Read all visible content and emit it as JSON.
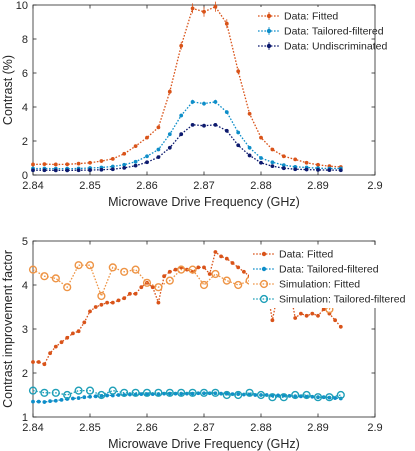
{
  "chart_data": [
    {
      "type": "line",
      "title": "",
      "xlabel": "Microwave Drive Frequency (GHz)",
      "ylabel": "Contrast (%)",
      "xlim": [
        2.84,
        2.9
      ],
      "ylim": [
        0,
        10
      ],
      "xticks": [
        "2.84",
        "2.85",
        "2.86",
        "2.87",
        "2.88",
        "2.89",
        "2.9"
      ],
      "yticks": [
        "0",
        "2",
        "4",
        "6",
        "8",
        "10"
      ],
      "legend_position": "top-right",
      "series": [
        {
          "name": "Data: Fitted",
          "color": "#d95319",
          "marker": "dot",
          "errorbar": true,
          "x": [
            2.84,
            2.842,
            2.844,
            2.846,
            2.848,
            2.85,
            2.852,
            2.854,
            2.856,
            2.858,
            2.86,
            2.862,
            2.864,
            2.866,
            2.868,
            2.87,
            2.872,
            2.874,
            2.876,
            2.878,
            2.88,
            2.882,
            2.884,
            2.886,
            2.888,
            2.89,
            2.892,
            2.894
          ],
          "y": [
            0.62,
            0.64,
            0.62,
            0.63,
            0.67,
            0.72,
            0.82,
            0.95,
            1.25,
            1.7,
            2.2,
            2.8,
            4.9,
            7.6,
            9.8,
            9.6,
            9.9,
            8.9,
            6.1,
            3.6,
            2.2,
            1.5,
            1.1,
            0.92,
            0.72,
            0.6,
            0.52,
            0.47
          ]
        },
        {
          "name": "Data: Tailored-filtered",
          "color": "#0e8ec9",
          "marker": "dot",
          "errorbar": true,
          "x": [
            2.84,
            2.842,
            2.844,
            2.846,
            2.848,
            2.85,
            2.852,
            2.854,
            2.856,
            2.858,
            2.86,
            2.862,
            2.864,
            2.866,
            2.868,
            2.87,
            2.872,
            2.874,
            2.876,
            2.878,
            2.88,
            2.882,
            2.884,
            2.886,
            2.888,
            2.89,
            2.892,
            2.894
          ],
          "y": [
            0.38,
            0.38,
            0.37,
            0.37,
            0.38,
            0.41,
            0.44,
            0.5,
            0.6,
            0.78,
            1.1,
            1.5,
            2.4,
            3.5,
            4.3,
            4.2,
            4.3,
            3.7,
            2.5,
            1.6,
            1.0,
            0.75,
            0.58,
            0.48,
            0.44,
            0.4,
            0.38,
            0.38
          ]
        },
        {
          "name": "Data: Undiscriminated",
          "color": "#0d1a6e",
          "marker": "dot",
          "errorbar": true,
          "x": [
            2.84,
            2.842,
            2.844,
            2.846,
            2.848,
            2.85,
            2.852,
            2.854,
            2.856,
            2.858,
            2.86,
            2.862,
            2.864,
            2.866,
            2.868,
            2.87,
            2.872,
            2.874,
            2.876,
            2.878,
            2.88,
            2.882,
            2.884,
            2.886,
            2.888,
            2.89,
            2.892,
            2.894
          ],
          "y": [
            0.28,
            0.28,
            0.27,
            0.27,
            0.28,
            0.29,
            0.31,
            0.34,
            0.42,
            0.55,
            0.75,
            1.05,
            1.6,
            2.4,
            2.95,
            2.9,
            2.95,
            2.6,
            1.75,
            1.15,
            0.72,
            0.52,
            0.4,
            0.34,
            0.32,
            0.3,
            0.29,
            0.28
          ]
        }
      ]
    },
    {
      "type": "line",
      "title": "",
      "xlabel": "Microwave Drive Frequency (GHz)",
      "ylabel": "Contrast improvement factor",
      "xlim": [
        2.84,
        2.9
      ],
      "ylim": [
        1,
        5
      ],
      "xticks": [
        "2.84",
        "2.85",
        "2.86",
        "2.87",
        "2.88",
        "2.89",
        "2.9"
      ],
      "yticks": [
        "1",
        "2",
        "3",
        "4",
        "5"
      ],
      "legend_position": "top-right",
      "series": [
        {
          "name": "Data: Fitted",
          "color": "#d95319",
          "marker": "dot",
          "x": [
            2.84,
            2.841,
            2.842,
            2.843,
            2.844,
            2.845,
            2.846,
            2.847,
            2.848,
            2.849,
            2.85,
            2.851,
            2.852,
            2.853,
            2.854,
            2.855,
            2.856,
            2.857,
            2.858,
            2.859,
            2.86,
            2.861,
            2.862,
            2.863,
            2.864,
            2.865,
            2.866,
            2.867,
            2.868,
            2.869,
            2.87,
            2.871,
            2.872,
            2.873,
            2.874,
            2.875,
            2.876,
            2.877,
            2.878,
            2.879,
            2.88,
            2.881,
            2.882,
            2.883,
            2.884,
            2.885,
            2.886,
            2.887,
            2.888,
            2.889,
            2.89,
            2.891,
            2.892,
            2.893,
            2.894
          ],
          "y": [
            2.25,
            2.25,
            2.2,
            2.45,
            2.6,
            2.7,
            2.8,
            2.9,
            2.95,
            3.15,
            3.4,
            3.5,
            3.55,
            3.6,
            3.6,
            3.65,
            3.7,
            3.8,
            3.8,
            3.95,
            4.05,
            3.95,
            3.6,
            4.2,
            4.3,
            4.35,
            4.4,
            4.35,
            4.3,
            4.4,
            4.4,
            4.25,
            4.75,
            4.65,
            4.6,
            4.5,
            4.4,
            4.3,
            4.2,
            4.05,
            4.0,
            3.95,
            3.2,
            3.85,
            3.9,
            3.95,
            3.25,
            3.35,
            3.3,
            3.35,
            3.3,
            3.45,
            3.35,
            3.2,
            3.05
          ]
        },
        {
          "name": "Data: Tailored-filtered",
          "color": "#0e8ec9",
          "marker": "dot",
          "x": [
            2.84,
            2.841,
            2.842,
            2.843,
            2.844,
            2.845,
            2.846,
            2.847,
            2.848,
            2.849,
            2.85,
            2.851,
            2.852,
            2.853,
            2.854,
            2.855,
            2.856,
            2.857,
            2.858,
            2.859,
            2.86,
            2.861,
            2.862,
            2.863,
            2.864,
            2.865,
            2.866,
            2.867,
            2.868,
            2.869,
            2.87,
            2.871,
            2.872,
            2.873,
            2.874,
            2.875,
            2.876,
            2.877,
            2.878,
            2.879,
            2.88,
            2.881,
            2.882,
            2.883,
            2.884,
            2.885,
            2.886,
            2.887,
            2.888,
            2.889,
            2.89,
            2.891,
            2.892,
            2.893,
            2.894
          ],
          "y": [
            1.35,
            1.35,
            1.34,
            1.36,
            1.37,
            1.39,
            1.41,
            1.42,
            1.43,
            1.45,
            1.46,
            1.47,
            1.48,
            1.49,
            1.49,
            1.5,
            1.5,
            1.51,
            1.51,
            1.52,
            1.52,
            1.52,
            1.52,
            1.53,
            1.53,
            1.53,
            1.53,
            1.53,
            1.53,
            1.54,
            1.54,
            1.54,
            1.54,
            1.53,
            1.53,
            1.52,
            1.52,
            1.51,
            1.51,
            1.5,
            1.5,
            1.5,
            1.49,
            1.49,
            1.49,
            1.48,
            1.47,
            1.47,
            1.46,
            1.46,
            1.45,
            1.45,
            1.44,
            1.43,
            1.42
          ]
        },
        {
          "name": "Simulation: Fitted",
          "color": "#ee9445",
          "marker": "circle",
          "x": [
            2.84,
            2.842,
            2.844,
            2.846,
            2.848,
            2.85,
            2.852,
            2.854,
            2.856,
            2.858,
            2.86,
            2.862,
            2.864,
            2.866,
            2.868,
            2.87,
            2.872,
            2.874,
            2.876,
            2.878,
            2.88,
            2.882,
            2.884,
            2.886,
            2.888,
            2.89,
            2.892,
            2.894
          ],
          "y": [
            4.35,
            4.2,
            4.15,
            3.95,
            4.45,
            4.45,
            3.75,
            4.4,
            4.3,
            4.35,
            4.05,
            3.95,
            4.1,
            4.35,
            4.35,
            4.0,
            4.25,
            4.1,
            4.0,
            4.1,
            3.95,
            3.95,
            3.85,
            3.9,
            4.0,
            3.6,
            3.45,
            4.0
          ]
        },
        {
          "name": "Simulation: Tailored-filtered",
          "color": "#1e9fb8",
          "marker": "circle",
          "x": [
            2.84,
            2.842,
            2.844,
            2.846,
            2.848,
            2.85,
            2.852,
            2.854,
            2.856,
            2.858,
            2.86,
            2.862,
            2.864,
            2.866,
            2.868,
            2.87,
            2.872,
            2.874,
            2.876,
            2.878,
            2.88,
            2.882,
            2.884,
            2.886,
            2.888,
            2.89,
            2.892,
            2.894
          ],
          "y": [
            1.6,
            1.55,
            1.55,
            1.5,
            1.6,
            1.6,
            1.5,
            1.6,
            1.55,
            1.55,
            1.55,
            1.55,
            1.55,
            1.55,
            1.55,
            1.55,
            1.55,
            1.5,
            1.5,
            1.55,
            1.5,
            1.45,
            1.45,
            1.5,
            1.5,
            1.45,
            1.45,
            1.5
          ]
        }
      ]
    }
  ]
}
